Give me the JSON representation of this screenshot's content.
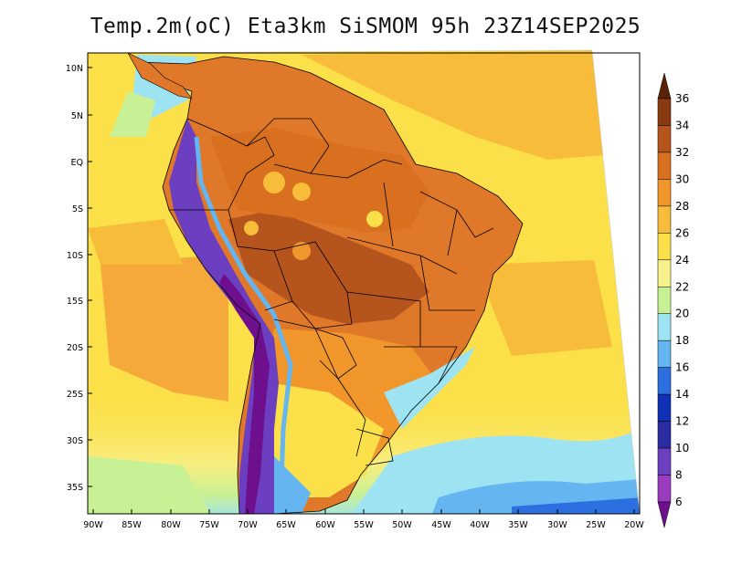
{
  "title": "Temp.2m(oC) Eta3km SiSMOM 95h 23Z14SEP2025",
  "lat_ticks": [
    "10N",
    "5N",
    "EQ",
    "5S",
    "10S",
    "15S",
    "20S",
    "25S",
    "30S",
    "35S"
  ],
  "lon_ticks": [
    "90W",
    "85W",
    "80W",
    "75W",
    "70W",
    "65W",
    "60W",
    "55W",
    "50W",
    "45W",
    "40W",
    "35W",
    "30W",
    "25W",
    "20W"
  ],
  "colorbar": {
    "labels": [
      "36",
      "34",
      "32",
      "30",
      "28",
      "26",
      "24",
      "22",
      "20",
      "18",
      "16",
      "14",
      "12",
      "10",
      "8",
      "6"
    ],
    "colors": [
      "#5a2307",
      "#8a3a10",
      "#b5541d",
      "#d9701f",
      "#f0962a",
      "#f7bc3a",
      "#fbe04a",
      "#f7f08c",
      "#c8f095",
      "#9ee3f2",
      "#64b5f0",
      "#2b6fe0",
      "#1031b5",
      "#2a2d9f",
      "#6b3fc0",
      "#9a3cc0",
      "#6e0f8e"
    ]
  },
  "colors": {
    "ocean_warm": "#fad84a",
    "ocean_hot": "#f4a93a",
    "land_hot": "#e0782a",
    "land_very_hot": "#b5541d",
    "andes_cold": "#6b3fc0",
    "border": "#000000"
  }
}
